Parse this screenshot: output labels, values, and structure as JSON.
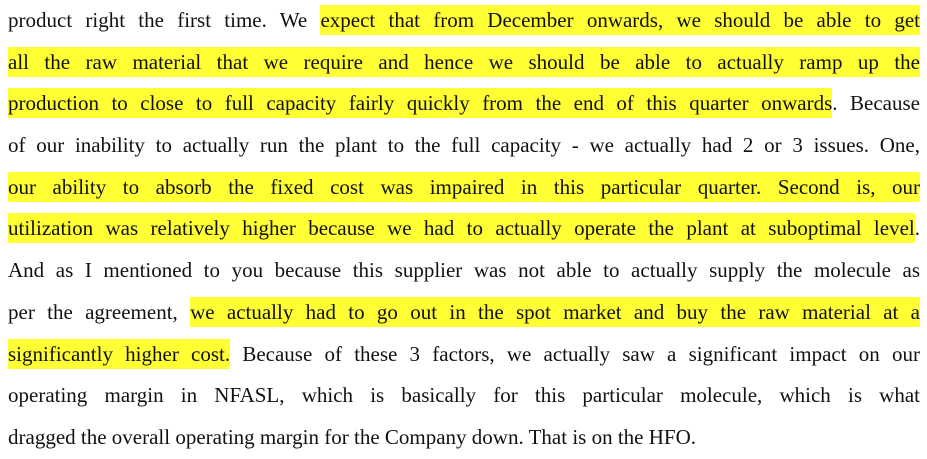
{
  "lines": [
    [
      {
        "text": "product right the first time. We ",
        "highlight": false
      },
      {
        "text": "expect that from December onwards, we should be able to get",
        "highlight": true
      }
    ],
    [
      {
        "text": "all the raw material that we require and hence we should be able to actually ramp up the",
        "highlight": true
      }
    ],
    [
      {
        "text": "production to close to full capacity fairly quickly from the end of this quarter onwards",
        "highlight": true
      },
      {
        "text": ". Because",
        "highlight": false
      }
    ],
    [
      {
        "text": "of our inability to actually run the plant to the full capacity - we actually had 2 or 3 issues. One,",
        "highlight": false
      }
    ],
    [
      {
        "text": "our ability to absorb the fixed cost was impaired in this particular quarter. Second is, our",
        "highlight": true
      }
    ],
    [
      {
        "text": "utilization was relatively higher because we had to actually operate the plant at suboptimal level",
        "highlight": true
      },
      {
        "text": ".",
        "highlight": false
      }
    ],
    [
      {
        "text": "And as I mentioned to you because this supplier was not able to actually supply the molecule as",
        "highlight": false
      }
    ],
    [
      {
        "text": "per the agreement, ",
        "highlight": false
      },
      {
        "text": "we actually had to go out in the spot market and buy the raw material at a",
        "highlight": true
      }
    ],
    [
      {
        "text": "significantly higher cost.",
        "highlight": true
      },
      {
        "text": " Because of these 3 factors, we actually saw a significant impact on our",
        "highlight": false
      }
    ],
    [
      {
        "text": "operating margin in NFASL, which is basically for this particular molecule, which is what",
        "highlight": false
      }
    ],
    [
      {
        "text": "dragged the overall operating margin for the Company down. That is on the HFO.",
        "highlight": false
      }
    ]
  ]
}
